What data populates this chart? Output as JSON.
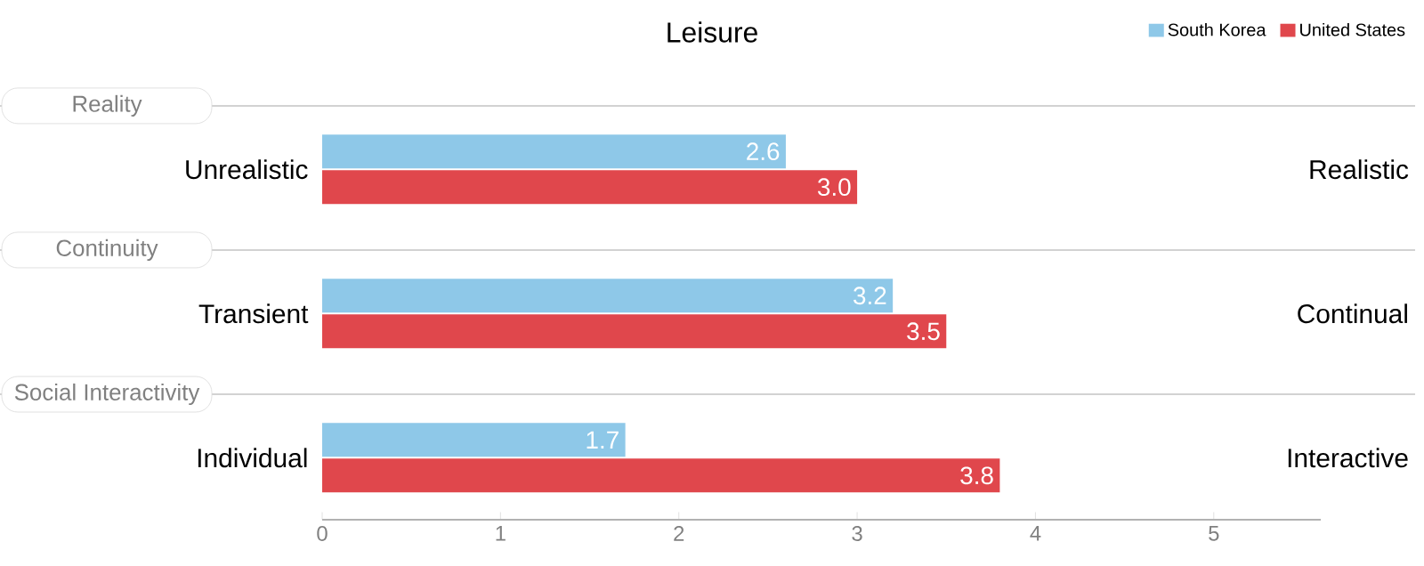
{
  "chart_data": {
    "type": "bar",
    "orientation": "horizontal",
    "title": "Leisure",
    "categories": [
      "Unrealistic",
      "Transient",
      "Individual"
    ],
    "series": [
      {
        "name": "South Korea",
        "color": "#8ec8e8",
        "values": [
          2.6,
          3.2,
          1.7
        ],
        "value_labels": [
          "2.6",
          "3.2",
          "1.7"
        ]
      },
      {
        "name": "United States",
        "color": "#e0474c",
        "values": [
          3.0,
          3.5,
          3.8
        ],
        "value_labels": [
          "3.0",
          "3.5",
          "3.8"
        ]
      }
    ],
    "annotations": [
      "Reality",
      "Continuity",
      "Social Interactivity",
      "Realistic",
      "Continual",
      "Interactive"
    ],
    "xlim": [
      0,
      5.6
    ],
    "xticks": [
      0,
      1,
      2,
      3,
      4,
      5
    ],
    "legend": "top right",
    "grid": false
  }
}
